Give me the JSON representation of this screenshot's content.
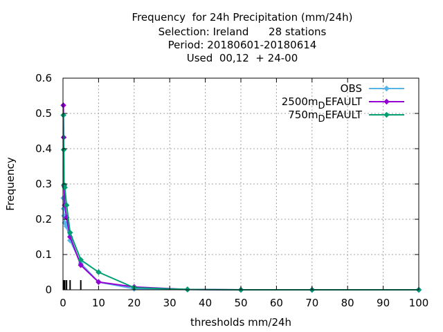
{
  "chart_data": {
    "type": "line",
    "title_lines": [
      "Frequency  for 24h Precipitation (mm/24h)",
      "Selection: Ireland      28 stations",
      "Period: 20180601-20180614",
      "Used  00,12  + 24-00"
    ],
    "xlabel": "thresholds mm/24h",
    "ylabel": "Frequency",
    "xlim": [
      0,
      100
    ],
    "ylim": [
      0,
      0.6
    ],
    "xticks": [
      0,
      10,
      20,
      30,
      40,
      50,
      60,
      70,
      80,
      90,
      100
    ],
    "yticks": [
      0,
      0.1,
      0.2,
      0.3,
      0.4,
      0.5,
      0.6
    ],
    "xtick_labels": [
      "0",
      "10",
      "20",
      "30",
      "40",
      "50",
      "60",
      "70",
      "80",
      "90",
      "100"
    ],
    "ytick_labels": [
      "0",
      "0.1",
      "0.2",
      "0.3",
      "0.4",
      "0.5",
      "0.6"
    ],
    "grid": true,
    "legend_position": "top-right",
    "threshold_markers": [
      0.1,
      0.2,
      0.3,
      0.5,
      1,
      2,
      5
    ],
    "series": [
      {
        "legend_main": "OBS",
        "legend_sub": "",
        "legend_tail": "",
        "color": "#56b4e9",
        "x": [
          0.1,
          0.2,
          0.3,
          0.5,
          1,
          2,
          5,
          10,
          20,
          35,
          50,
          70,
          100
        ],
        "y": [
          0.26,
          0.23,
          0.21,
          0.19,
          0.18,
          0.14,
          0.075,
          0.022,
          0.003,
          0.001,
          0,
          0,
          0
        ]
      },
      {
        "legend_main": "2500m",
        "legend_sub": "D",
        "legend_tail": "EFAULT",
        "color": "#9400d3",
        "x": [
          0.1,
          0.2,
          0.3,
          0.5,
          1,
          2,
          5,
          10,
          20,
          35,
          50,
          70,
          100
        ],
        "y": [
          0.523,
          0.432,
          0.295,
          0.24,
          0.205,
          0.15,
          0.07,
          0.022,
          0.008,
          0.001,
          0,
          0,
          0
        ]
      },
      {
        "legend_main": "750m",
        "legend_sub": "D",
        "legend_tail": "EFAULT",
        "color": "#009e73",
        "x": [
          0.1,
          0.2,
          0.3,
          0.5,
          1,
          2,
          5,
          10,
          20,
          35,
          50,
          70,
          100
        ],
        "y": [
          0.495,
          0.397,
          0.298,
          0.29,
          0.24,
          0.162,
          0.085,
          0.05,
          0.006,
          0.001,
          0,
          0,
          0
        ]
      }
    ]
  }
}
